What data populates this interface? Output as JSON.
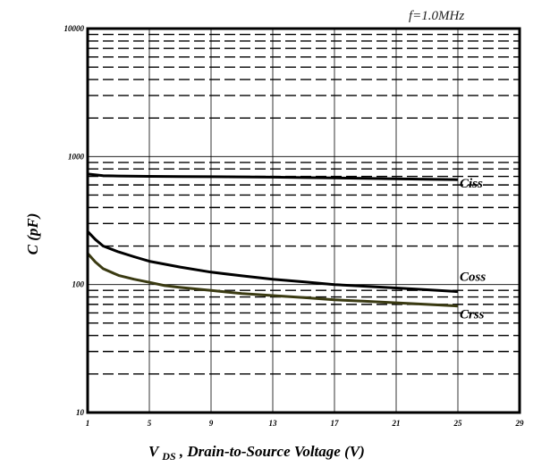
{
  "chart_data": {
    "type": "line",
    "title": "",
    "annotation": "f=1.0MHz",
    "xlabel": "V",
    "xlabel_sub": "DS",
    "xlabel_rest": " , Drain-to-Source Voltage (V)",
    "ylabel": "C (pF)",
    "x_ticks": [
      "1",
      "5",
      "9",
      "13",
      "17",
      "21",
      "25",
      "29"
    ],
    "y_ticks": [
      "10",
      "100",
      "1000",
      "10000"
    ],
    "xlim": [
      1,
      29
    ],
    "ylim": [
      10,
      10000
    ],
    "y_scale": "log",
    "grid": true,
    "series": [
      {
        "name": "Ciss",
        "color": "#000000",
        "x": [
          1,
          2,
          3,
          5,
          7,
          9,
          11,
          13,
          15,
          17,
          19,
          21,
          23,
          25
        ],
        "y": [
          730,
          710,
          705,
          700,
          698,
          696,
          694,
          690,
          685,
          680,
          675,
          670,
          665,
          660
        ]
      },
      {
        "name": "Coss",
        "color": "#000000",
        "x": [
          1,
          1.5,
          2,
          3,
          4,
          5,
          7,
          9,
          11,
          13,
          15,
          17,
          19,
          21,
          23,
          25
        ],
        "y": [
          260,
          225,
          200,
          180,
          165,
          152,
          137,
          125,
          117,
          110,
          105,
          100,
          97,
          94,
          91,
          88
        ]
      },
      {
        "name": "Crss",
        "color": "#3a3a12",
        "x": [
          1,
          1.5,
          2,
          3,
          4,
          5,
          6,
          7,
          9,
          11,
          13,
          15,
          17,
          19,
          21,
          23,
          25
        ],
        "y": [
          175,
          150,
          133,
          118,
          110,
          104,
          98,
          95,
          90,
          85,
          82,
          79,
          76,
          74,
          72,
          70,
          68
        ]
      }
    ]
  }
}
